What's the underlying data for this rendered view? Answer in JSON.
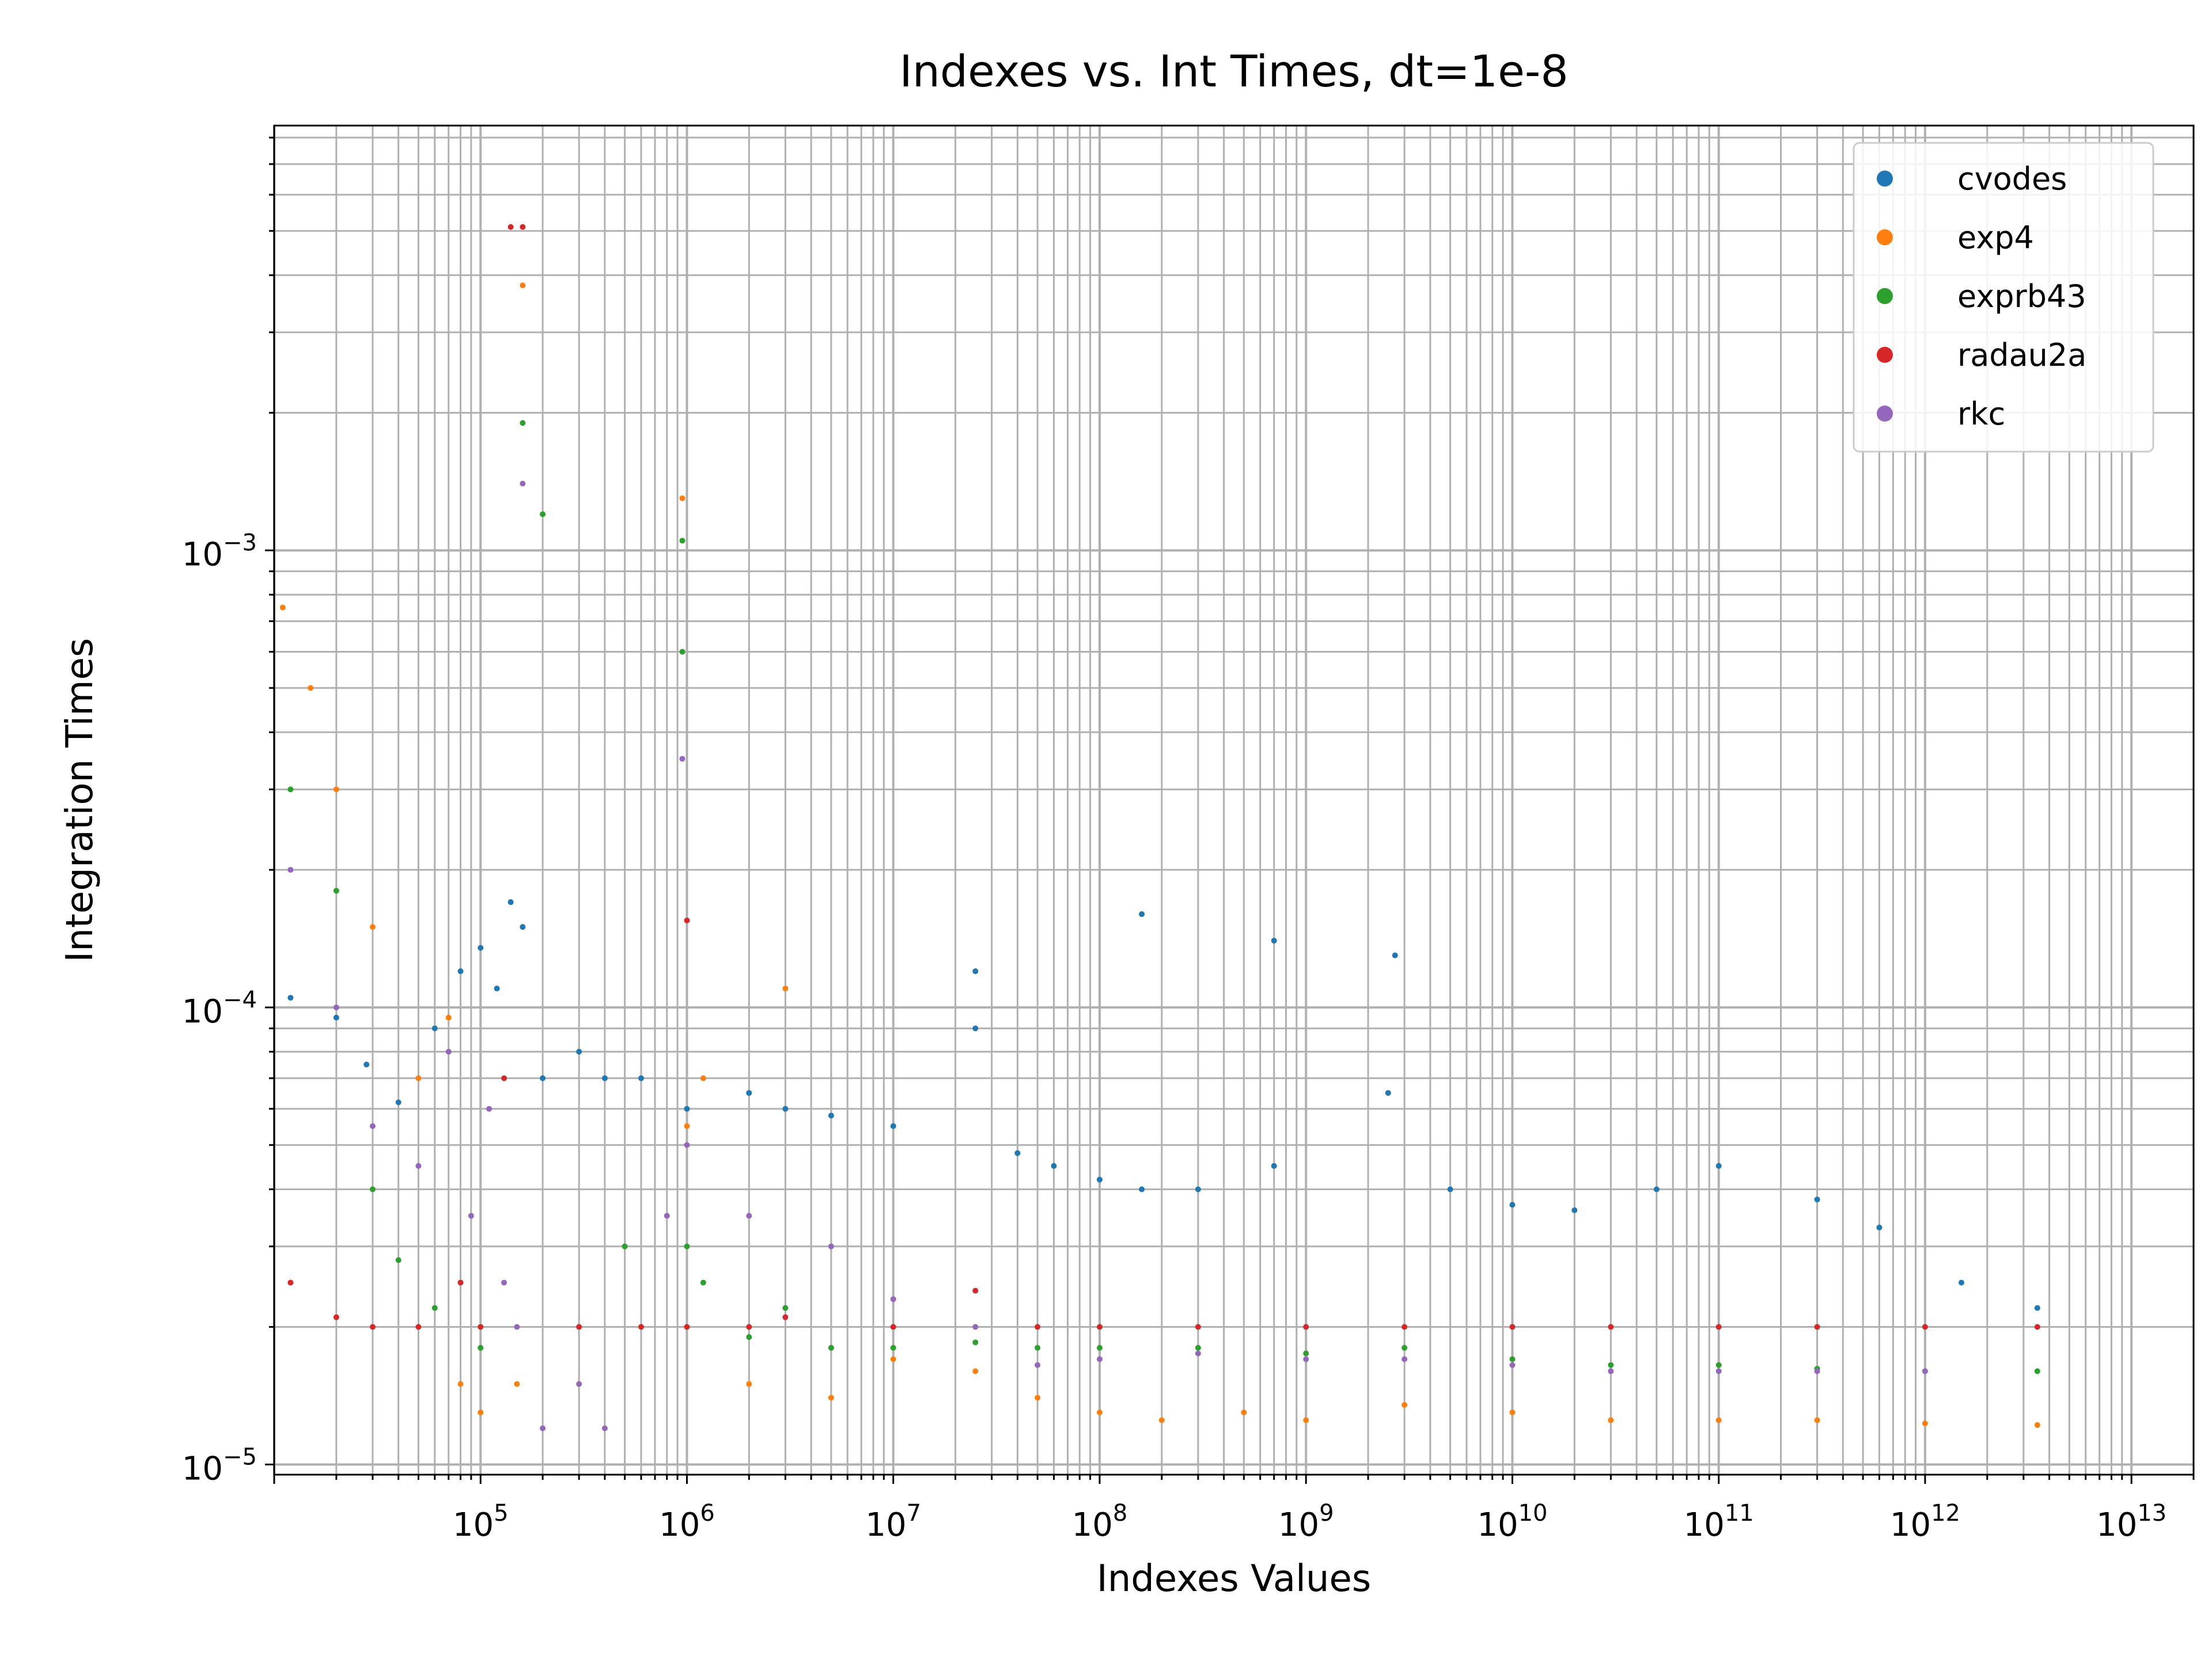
{
  "chart_data": {
    "type": "scatter",
    "title": "Indexes vs. Int Times, dt=1e-8",
    "xlabel": "Indexes Values",
    "ylabel": "Integration Times",
    "xscale": "log",
    "yscale": "log",
    "xlim": [
      10000,
      20000000000000
    ],
    "ylim": [
      9.5e-06,
      0.0085
    ],
    "grid": "on (major and minor)",
    "legend_position": "top-right",
    "x_ticks": [
      {
        "base": "10",
        "exp": "5"
      },
      {
        "base": "10",
        "exp": "6"
      },
      {
        "base": "10",
        "exp": "7"
      },
      {
        "base": "10",
        "exp": "8"
      },
      {
        "base": "10",
        "exp": "9"
      },
      {
        "base": "10",
        "exp": "10"
      },
      {
        "base": "10",
        "exp": "11"
      },
      {
        "base": "10",
        "exp": "12"
      },
      {
        "base": "10",
        "exp": "13"
      }
    ],
    "y_ticks": [
      {
        "base": "10",
        "exp": "−5"
      },
      {
        "base": "10",
        "exp": "−4"
      },
      {
        "base": "10",
        "exp": "−3"
      }
    ],
    "series": [
      {
        "name": "cvodes",
        "color": "#1f77b4",
        "points": [
          [
            12000,
            0.000105
          ],
          [
            20000,
            9.5e-05
          ],
          [
            28000,
            7.5e-05
          ],
          [
            40000,
            6.2e-05
          ],
          [
            60000,
            9e-05
          ],
          [
            80000,
            0.00012
          ],
          [
            100000,
            0.000135
          ],
          [
            120000,
            0.00011
          ],
          [
            140000,
            0.00017
          ],
          [
            160000,
            0.00015
          ],
          [
            200000,
            7e-05
          ],
          [
            300000,
            8e-05
          ],
          [
            400000,
            7e-05
          ],
          [
            600000,
            7e-05
          ],
          [
            1000000,
            6e-05
          ],
          [
            2000000,
            6.5e-05
          ],
          [
            3000000,
            6e-05
          ],
          [
            5000000,
            5.8e-05
          ],
          [
            10000000,
            5.5e-05
          ],
          [
            25000000,
            9e-05
          ],
          [
            25000000,
            0.00012
          ],
          [
            40000000,
            4.8e-05
          ],
          [
            60000000,
            4.5e-05
          ],
          [
            100000000,
            4.2e-05
          ],
          [
            160000000,
            4e-05
          ],
          [
            160000000,
            0.00016
          ],
          [
            300000000,
            4e-05
          ],
          [
            700000000,
            4.5e-05
          ],
          [
            700000000,
            0.00014
          ],
          [
            2500000000,
            6.5e-05
          ],
          [
            2700000000,
            0.00013
          ],
          [
            5000000000,
            4e-05
          ],
          [
            10000000000,
            3.7e-05
          ],
          [
            20000000000,
            3.6e-05
          ],
          [
            50000000000,
            4e-05
          ],
          [
            100000000000,
            4.5e-05
          ],
          [
            300000000000,
            3.8e-05
          ],
          [
            600000000000,
            3.3e-05
          ],
          [
            1500000000000,
            2.5e-05
          ],
          [
            3500000000000,
            2.2e-05
          ]
        ]
      },
      {
        "name": "exp4",
        "color": "#ff7f0e",
        "points": [
          [
            11000,
            0.00075
          ],
          [
            15000,
            0.0005
          ],
          [
            20000,
            0.0003
          ],
          [
            30000,
            0.00015
          ],
          [
            50000,
            7e-05
          ],
          [
            70000,
            9.5e-05
          ],
          [
            80000,
            1.5e-05
          ],
          [
            100000,
            1.3e-05
          ],
          [
            150000,
            1.5e-05
          ],
          [
            160000,
            0.0038
          ],
          [
            950000,
            0.0013
          ],
          [
            1000000,
            5.5e-05
          ],
          [
            1200000,
            7e-05
          ],
          [
            2000000,
            1.5e-05
          ],
          [
            3000000,
            0.00011
          ],
          [
            5000000,
            1.4e-05
          ],
          [
            10000000,
            1.7e-05
          ],
          [
            25000000,
            1.6e-05
          ],
          [
            50000000,
            1.4e-05
          ],
          [
            100000000,
            1.3e-05
          ],
          [
            200000000,
            1.25e-05
          ],
          [
            500000000,
            1.3e-05
          ],
          [
            1000000000,
            1.25e-05
          ],
          [
            3000000000,
            1.35e-05
          ],
          [
            10000000000,
            1.3e-05
          ],
          [
            30000000000,
            1.25e-05
          ],
          [
            100000000000,
            1.25e-05
          ],
          [
            300000000000,
            1.25e-05
          ],
          [
            1000000000000,
            1.23e-05
          ],
          [
            3500000000000,
            1.22e-05
          ]
        ]
      },
      {
        "name": "exprb43",
        "color": "#2ca02c",
        "points": [
          [
            12000,
            0.0003
          ],
          [
            20000,
            0.00018
          ],
          [
            30000,
            4e-05
          ],
          [
            40000,
            2.8e-05
          ],
          [
            60000,
            2.2e-05
          ],
          [
            100000,
            1.8e-05
          ],
          [
            160000,
            0.0019
          ],
          [
            200000,
            0.0012
          ],
          [
            500000,
            3e-05
          ],
          [
            950000,
            0.00105
          ],
          [
            950000,
            0.0006
          ],
          [
            1000000,
            3e-05
          ],
          [
            1200000,
            2.5e-05
          ],
          [
            2000000,
            1.9e-05
          ],
          [
            3000000,
            2.2e-05
          ],
          [
            5000000,
            1.8e-05
          ],
          [
            10000000,
            1.8e-05
          ],
          [
            25000000,
            1.85e-05
          ],
          [
            50000000,
            1.8e-05
          ],
          [
            100000000,
            1.8e-05
          ],
          [
            300000000,
            1.8e-05
          ],
          [
            1000000000,
            1.75e-05
          ],
          [
            3000000000,
            1.8e-05
          ],
          [
            10000000000,
            1.7e-05
          ],
          [
            30000000000,
            1.65e-05
          ],
          [
            100000000000,
            1.65e-05
          ],
          [
            300000000000,
            1.62e-05
          ],
          [
            1000000000000,
            1.6e-05
          ],
          [
            3500000000000,
            1.6e-05
          ]
        ]
      },
      {
        "name": "radau2a",
        "color": "#d62728",
        "points": [
          [
            12000,
            2.5e-05
          ],
          [
            20000,
            2.1e-05
          ],
          [
            30000,
            2e-05
          ],
          [
            50000,
            2e-05
          ],
          [
            80000,
            2.5e-05
          ],
          [
            100000,
            2e-05
          ],
          [
            130000,
            7e-05
          ],
          [
            140000,
            0.0051
          ],
          [
            160000,
            0.0051
          ],
          [
            300000,
            2e-05
          ],
          [
            600000,
            2e-05
          ],
          [
            1000000,
            0.000155
          ],
          [
            1000000,
            2e-05
          ],
          [
            2000000,
            2e-05
          ],
          [
            3000000,
            2.1e-05
          ],
          [
            10000000,
            2e-05
          ],
          [
            25000000,
            2.4e-05
          ],
          [
            50000000,
            2e-05
          ],
          [
            100000000,
            2e-05
          ],
          [
            300000000,
            2e-05
          ],
          [
            1000000000,
            2e-05
          ],
          [
            3000000000,
            2e-05
          ],
          [
            10000000000,
            2e-05
          ],
          [
            30000000000,
            2e-05
          ],
          [
            100000000000,
            2e-05
          ],
          [
            300000000000,
            2e-05
          ],
          [
            1000000000000,
            2e-05
          ],
          [
            3500000000000,
            2e-05
          ]
        ]
      },
      {
        "name": "rkc",
        "color": "#9467bd",
        "points": [
          [
            12000,
            0.0002
          ],
          [
            20000,
            0.0001
          ],
          [
            30000,
            5.5e-05
          ],
          [
            50000,
            4.5e-05
          ],
          [
            70000,
            8e-05
          ],
          [
            90000,
            3.5e-05
          ],
          [
            110000,
            6e-05
          ],
          [
            130000,
            2.5e-05
          ],
          [
            150000,
            2e-05
          ],
          [
            160000,
            0.0014
          ],
          [
            200000,
            1.2e-05
          ],
          [
            300000,
            1.5e-05
          ],
          [
            400000,
            1.2e-05
          ],
          [
            800000,
            3.5e-05
          ],
          [
            950000,
            0.00035
          ],
          [
            1000000,
            5e-05
          ],
          [
            2000000,
            3.5e-05
          ],
          [
            5000000,
            3e-05
          ],
          [
            10000000,
            2.3e-05
          ],
          [
            25000000,
            2e-05
          ],
          [
            50000000,
            1.65e-05
          ],
          [
            100000000,
            1.7e-05
          ],
          [
            300000000,
            1.75e-05
          ],
          [
            1000000000,
            1.7e-05
          ],
          [
            3000000000,
            1.7e-05
          ],
          [
            10000000000,
            1.65e-05
          ],
          [
            30000000000,
            1.6e-05
          ],
          [
            100000000000,
            1.6e-05
          ],
          [
            300000000000,
            1.6e-05
          ],
          [
            1000000000000,
            1.6e-05
          ]
        ]
      }
    ]
  }
}
